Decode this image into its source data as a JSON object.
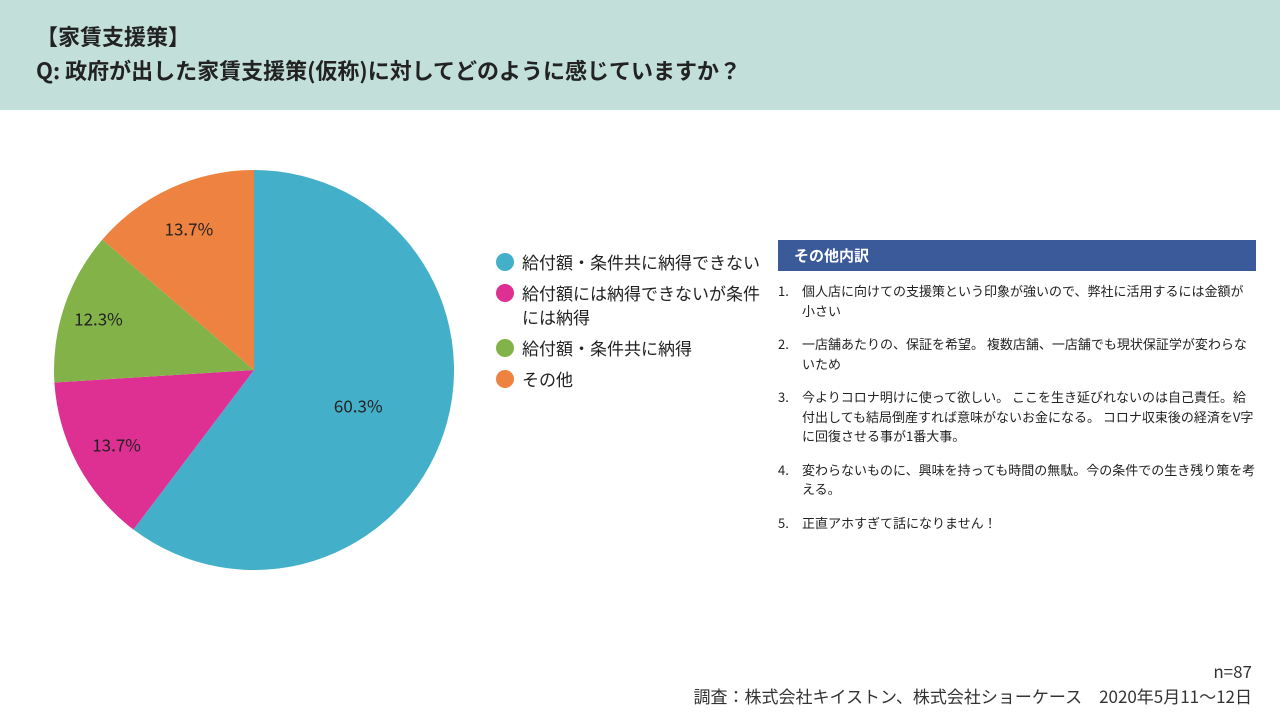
{
  "header": {
    "line1": "【家賃支援策】",
    "line2": "Q: 政府が出した家賃支援策(仮称)に対してどのように感じていますか？",
    "background_color": "#c2e0d9"
  },
  "pie": {
    "type": "pie",
    "start_angle": -90,
    "radius": 200,
    "slices": [
      {
        "label": "給付額・条件共に納得できない",
        "value": 60.3,
        "color": "#44afc9",
        "display": "60.3%",
        "label_offset_factor": 0.55
      },
      {
        "label": "給付額には納得できないが条件には納得",
        "value": 13.7,
        "color": "#de2f92",
        "display": "13.7%",
        "label_offset_factor": 0.78
      },
      {
        "label": "給付額・条件共に納得",
        "value": 12.3,
        "color": "#83b348",
        "display": "12.3%",
        "label_offset_factor": 0.82
      },
      {
        "label": "その他",
        "value": 13.7,
        "color": "#ee8240",
        "display": "13.7%",
        "label_offset_factor": 0.78
      }
    ],
    "label_font_size": 17,
    "background_color": "#ffffff"
  },
  "legend": {
    "items": [
      {
        "text": "給付額・条件共に納得できない",
        "color": "#44afc9"
      },
      {
        "text": "給付額には納得できないが条件には納得",
        "color": "#de2f92"
      },
      {
        "text": "給付額・条件共に納得",
        "color": "#83b348"
      },
      {
        "text": "その他",
        "color": "#ee8240"
      }
    ]
  },
  "detail": {
    "title": "その他内訳",
    "title_bg": "#3b5a9a",
    "title_color": "#ffffff",
    "items": [
      "個人店に向けての支援策という印象が強いので、弊社に活用するには金額が小さい",
      "一店舗あたりの、保証を希望。 複数店舗、一店舗でも現状保証学が変わらないため",
      "今よりコロナ明けに使って欲しい。 ここを生き延びれないのは自己責任。給付出しても結局倒産すれば意味がないお金になる。 コロナ収束後の経済をV字に回復させる事が1番大事。",
      "変わらないものに、興味を持っても時間の無駄。今の条件での生き残り策を考える。",
      "正直アホすぎて話になりません！"
    ]
  },
  "footer": {
    "n_label": "n=87",
    "source": "調査：株式会社キイストン、株式会社ショーケース　2020年5月11～12日"
  }
}
